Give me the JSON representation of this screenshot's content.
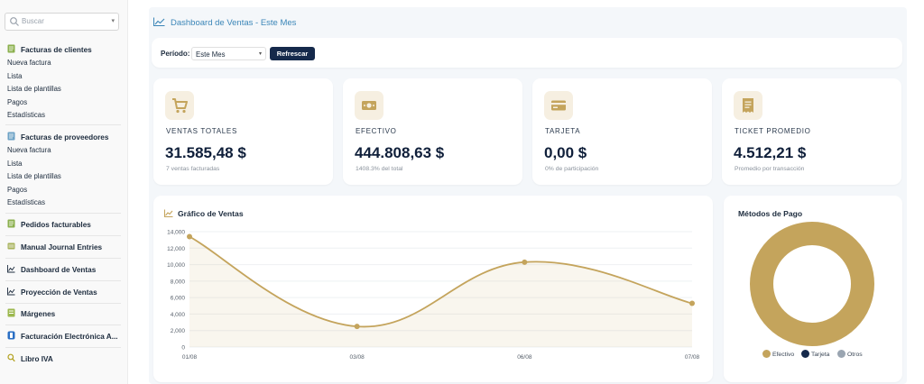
{
  "search": {
    "placeholder": "Buscar"
  },
  "sidebar": {
    "sections": [
      {
        "label": "Facturas de clientes",
        "icon": "invoice-icon",
        "items": [
          "Nueva factura",
          "Lista",
          "Lista de plantillas",
          "Pagos",
          "Estadísticas"
        ]
      },
      {
        "label": "Facturas de proveedores",
        "icon": "invoice-icon",
        "items": [
          "Nueva factura",
          "Lista",
          "Lista de plantillas",
          "Pagos",
          "Estadísticas"
        ]
      }
    ],
    "links": [
      {
        "label": "Pedidos facturables",
        "icon": "invoice-icon"
      },
      {
        "label": "Manual Journal Entries",
        "icon": "journal-icon"
      },
      {
        "label": "Dashboard de Ventas",
        "icon": "line-chart-icon"
      },
      {
        "label": "Proyección de Ventas",
        "icon": "line-chart-icon"
      },
      {
        "label": "Márgenes",
        "icon": "document-icon"
      },
      {
        "label": "Facturación Electrónica A...",
        "icon": "electronic-invoice-icon"
      },
      {
        "label": "Libro IVA",
        "icon": "magnifier-icon"
      }
    ]
  },
  "header": {
    "title": "Dashboard de Ventas - Este Mes"
  },
  "filters": {
    "period_label": "Período:",
    "period_value": "Este Mes",
    "refresh_label": "Refrescar"
  },
  "kpis": [
    {
      "title": "VENTAS TOTALES",
      "value": "31.585,48 $",
      "subtitle": "7 ventas facturadas",
      "icon": "cart-icon"
    },
    {
      "title": "EFECTIVO",
      "value": "444.808,63 $",
      "subtitle": "1408.3% del total",
      "icon": "cash-icon"
    },
    {
      "title": "TARJETA",
      "value": "0,00 $",
      "subtitle": "0% de participación",
      "icon": "credit-card-icon"
    },
    {
      "title": "TICKET PROMEDIO",
      "value": "4.512,21 $",
      "subtitle": "Promedio por transacción",
      "icon": "receipt-icon"
    }
  ],
  "colors": {
    "accent": "#c4a45c",
    "navy": "#15294b",
    "grey": "#9aa5b1",
    "link": "#3b86b8",
    "icon_bg": "#f6efe1"
  },
  "chart_data": [
    {
      "type": "area",
      "title": "Gráfico de Ventas",
      "x": [
        "01/08",
        "03/08",
        "06/08",
        "07/08"
      ],
      "series": [
        {
          "values": [
            13400,
            2500,
            10300,
            5300
          ]
        }
      ],
      "ylim": [
        0,
        14000
      ],
      "yticks": [
        0,
        2000,
        4000,
        6000,
        8000,
        10000,
        12000,
        14000
      ],
      "ytick_labels": [
        "0",
        "2,000",
        "4,000",
        "6,000",
        "8,000",
        "10,000",
        "12,000",
        "14,000"
      ],
      "grid": true
    },
    {
      "type": "pie",
      "donut": true,
      "title": "Métodos de Pago",
      "labels": [
        "Efectivo",
        "Tarjeta",
        "Otros"
      ],
      "values": [
        100,
        0,
        0
      ],
      "colors": [
        "#c4a45c",
        "#15294b",
        "#9aa5b1"
      ],
      "legend": "bottom"
    }
  ]
}
